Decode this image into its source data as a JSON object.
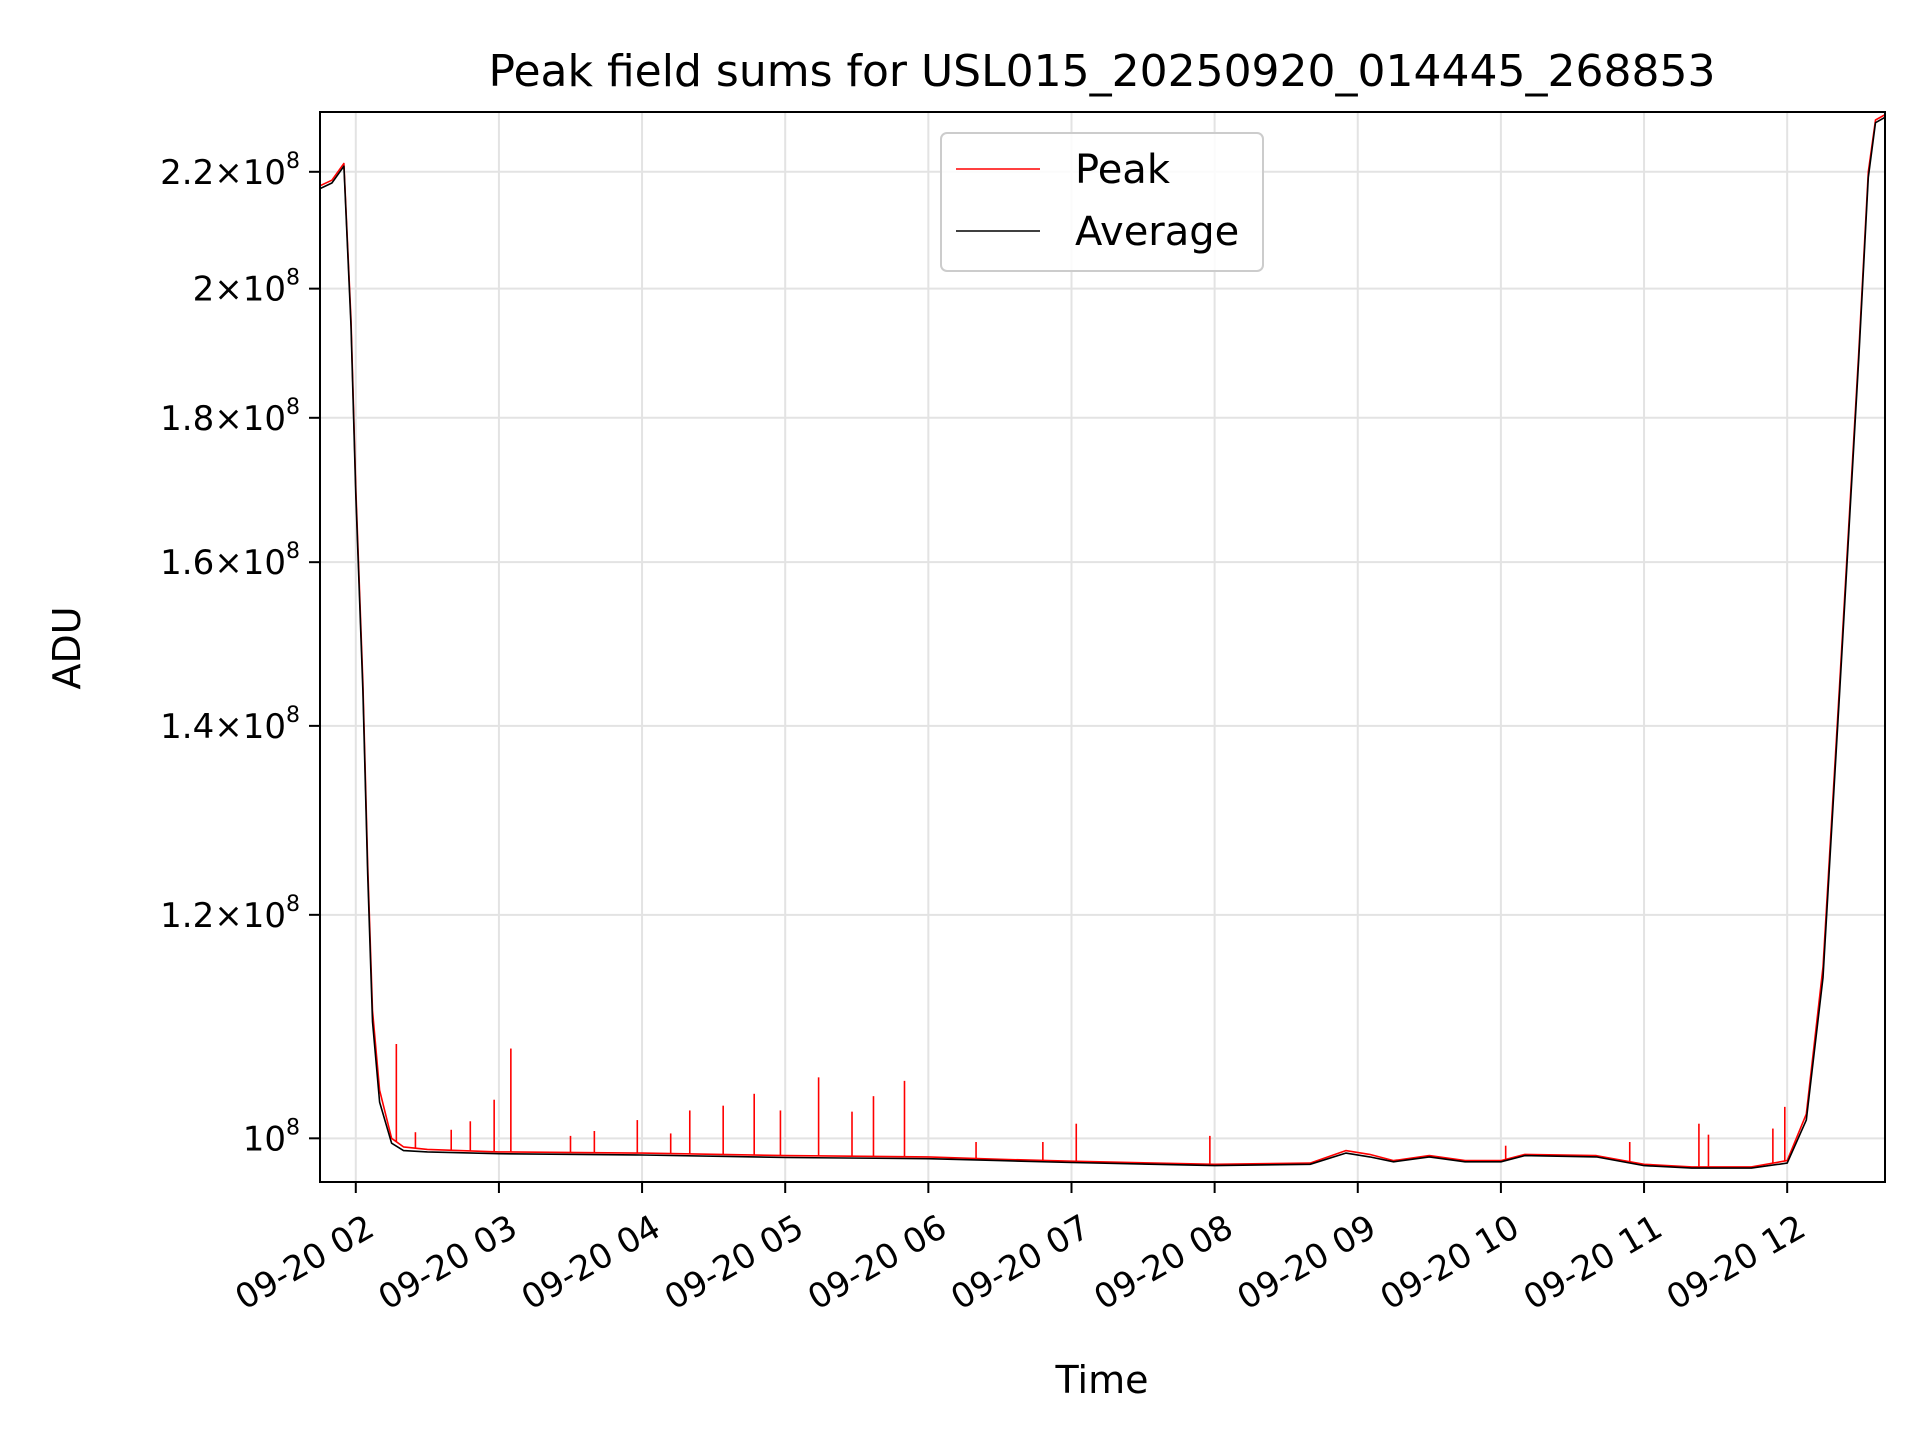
{
  "chart_data": {
    "type": "line",
    "title": "Peak field sums for USL015_20250920_014445_268853",
    "xlabel": "Time",
    "ylabel": "ADU",
    "y_scale": "log",
    "grid": true,
    "legend_position": "top-center",
    "xlim": [
      "2025-09-20 01:45",
      "2025-09-20 12:41"
    ],
    "ylim": [
      96500000,
      231000000
    ],
    "x_ticks": [
      "2025-09-20 02:00",
      "2025-09-20 03:00",
      "2025-09-20 04:00",
      "2025-09-20 05:00",
      "2025-09-20 06:00",
      "2025-09-20 07:00",
      "2025-09-20 08:00",
      "2025-09-20 09:00",
      "2025-09-20 10:00",
      "2025-09-20 11:00",
      "2025-09-20 12:00"
    ],
    "x_tick_labels": [
      "09-20 02",
      "09-20 03",
      "09-20 04",
      "09-20 05",
      "09-20 06",
      "09-20 07",
      "09-20 08",
      "09-20 09",
      "09-20 10",
      "09-20 11",
      "09-20 12"
    ],
    "y_ticks": [
      {
        "value": 100000000,
        "mantissa": "",
        "exponent": "8"
      },
      {
        "value": 120000000,
        "mantissa": "1.2",
        "exponent": "8"
      },
      {
        "value": 140000000,
        "mantissa": "1.4",
        "exponent": "8"
      },
      {
        "value": 160000000,
        "mantissa": "1.6",
        "exponent": "8"
      },
      {
        "value": 180000000,
        "mantissa": "1.8",
        "exponent": "8"
      },
      {
        "value": 200000000,
        "mantissa": "2",
        "exponent": "8"
      },
      {
        "value": 220000000,
        "mantissa": "2.2",
        "exponent": "8"
      }
    ],
    "series": [
      {
        "name": "Peak",
        "color": "#ff0000",
        "points": [
          [
            "2025-09-20 01:45",
            217500000
          ],
          [
            "2025-09-20 01:50",
            218500000
          ],
          [
            "2025-09-20 01:55",
            221500000
          ],
          [
            "2025-09-20 01:58",
            195000000
          ],
          [
            "2025-09-20 02:00",
            170000000
          ],
          [
            "2025-09-20 02:03",
            145000000
          ],
          [
            "2025-09-20 02:05",
            125000000
          ],
          [
            "2025-09-20 02:07",
            111000000
          ],
          [
            "2025-09-20 02:10",
            104000000
          ],
          [
            "2025-09-20 02:15",
            100000000
          ],
          [
            "2025-09-20 02:20",
            99300000
          ],
          [
            "2025-09-20 02:30",
            99100000
          ],
          [
            "2025-09-20 03:00",
            98900000
          ],
          [
            "2025-09-20 04:00",
            98800000
          ],
          [
            "2025-09-20 05:00",
            98600000
          ],
          [
            "2025-09-20 06:00",
            98500000
          ],
          [
            "2025-09-20 06:30",
            98300000
          ],
          [
            "2025-09-20 07:00",
            98150000
          ],
          [
            "2025-09-20 08:00",
            97900000
          ],
          [
            "2025-09-20 08:40",
            98000000
          ],
          [
            "2025-09-20 08:55",
            99000000
          ],
          [
            "2025-09-20 09:05",
            98700000
          ],
          [
            "2025-09-20 09:15",
            98200000
          ],
          [
            "2025-09-20 09:30",
            98600000
          ],
          [
            "2025-09-20 09:45",
            98200000
          ],
          [
            "2025-09-20 10:00",
            98200000
          ],
          [
            "2025-09-20 10:10",
            98700000
          ],
          [
            "2025-09-20 10:40",
            98600000
          ],
          [
            "2025-09-20 11:00",
            97900000
          ],
          [
            "2025-09-20 11:20",
            97700000
          ],
          [
            "2025-09-20 11:45",
            97700000
          ],
          [
            "2025-09-20 12:00",
            98200000
          ],
          [
            "2025-09-20 12:08",
            102000000
          ],
          [
            "2025-09-20 12:15",
            115000000
          ],
          [
            "2025-09-20 12:22",
            145000000
          ],
          [
            "2025-09-20 12:30",
            190000000
          ],
          [
            "2025-09-20 12:34",
            220000000
          ],
          [
            "2025-09-20 12:37",
            229500000
          ],
          [
            "2025-09-20 12:41",
            230500000
          ]
        ],
        "spikes": [
          [
            "2025-09-20 02:17",
            108000000
          ],
          [
            "2025-09-20 02:25",
            100500000
          ],
          [
            "2025-09-20 02:40",
            100700000
          ],
          [
            "2025-09-20 02:48",
            101400000
          ],
          [
            "2025-09-20 02:58",
            103200000
          ],
          [
            "2025-09-20 03:05",
            107600000
          ],
          [
            "2025-09-20 03:30",
            100200000
          ],
          [
            "2025-09-20 03:40",
            100600000
          ],
          [
            "2025-09-20 03:58",
            101500000
          ],
          [
            "2025-09-20 04:12",
            100400000
          ],
          [
            "2025-09-20 04:20",
            102300000
          ],
          [
            "2025-09-20 04:34",
            102700000
          ],
          [
            "2025-09-20 04:47",
            103700000
          ],
          [
            "2025-09-20 04:58",
            102300000
          ],
          [
            "2025-09-20 05:14",
            105100000
          ],
          [
            "2025-09-20 05:28",
            102200000
          ],
          [
            "2025-09-20 05:37",
            103500000
          ],
          [
            "2025-09-20 05:50",
            104800000
          ],
          [
            "2025-09-20 06:20",
            99700000
          ],
          [
            "2025-09-20 06:48",
            99700000
          ],
          [
            "2025-09-20 07:02",
            101200000
          ],
          [
            "2025-09-20 07:58",
            100200000
          ],
          [
            "2025-09-20 10:02",
            99400000
          ],
          [
            "2025-09-20 10:54",
            99700000
          ],
          [
            "2025-09-20 11:23",
            101200000
          ],
          [
            "2025-09-20 11:27",
            100300000
          ],
          [
            "2025-09-20 11:54",
            100800000
          ],
          [
            "2025-09-20 11:59",
            102600000
          ]
        ]
      },
      {
        "name": "Average",
        "color": "#000000",
        "points": [
          [
            "2025-09-20 01:45",
            217000000
          ],
          [
            "2025-09-20 01:50",
            218000000
          ],
          [
            "2025-09-20 01:55",
            221000000
          ],
          [
            "2025-09-20 01:58",
            194000000
          ],
          [
            "2025-09-20 02:00",
            169000000
          ],
          [
            "2025-09-20 02:03",
            144000000
          ],
          [
            "2025-09-20 02:05",
            124000000
          ],
          [
            "2025-09-20 02:07",
            110000000
          ],
          [
            "2025-09-20 02:10",
            103000000
          ],
          [
            "2025-09-20 02:15",
            99600000
          ],
          [
            "2025-09-20 02:20",
            99000000
          ],
          [
            "2025-09-20 02:30",
            98900000
          ],
          [
            "2025-09-20 03:00",
            98750000
          ],
          [
            "2025-09-20 04:00",
            98650000
          ],
          [
            "2025-09-20 05:00",
            98450000
          ],
          [
            "2025-09-20 06:00",
            98350000
          ],
          [
            "2025-09-20 06:30",
            98200000
          ],
          [
            "2025-09-20 07:00",
            98050000
          ],
          [
            "2025-09-20 08:00",
            97800000
          ],
          [
            "2025-09-20 08:40",
            97900000
          ],
          [
            "2025-09-20 08:55",
            98800000
          ],
          [
            "2025-09-20 09:05",
            98500000
          ],
          [
            "2025-09-20 09:15",
            98100000
          ],
          [
            "2025-09-20 09:30",
            98500000
          ],
          [
            "2025-09-20 09:45",
            98100000
          ],
          [
            "2025-09-20 10:00",
            98100000
          ],
          [
            "2025-09-20 10:10",
            98600000
          ],
          [
            "2025-09-20 10:40",
            98500000
          ],
          [
            "2025-09-20 11:00",
            97800000
          ],
          [
            "2025-09-20 11:20",
            97600000
          ],
          [
            "2025-09-20 11:45",
            97600000
          ],
          [
            "2025-09-20 12:00",
            98000000
          ],
          [
            "2025-09-20 12:08",
            101500000
          ],
          [
            "2025-09-20 12:15",
            114000000
          ],
          [
            "2025-09-20 12:22",
            144000000
          ],
          [
            "2025-09-20 12:30",
            189000000
          ],
          [
            "2025-09-20 12:34",
            219000000
          ],
          [
            "2025-09-20 12:37",
            229000000
          ],
          [
            "2025-09-20 12:41",
            230000000
          ]
        ]
      }
    ]
  }
}
